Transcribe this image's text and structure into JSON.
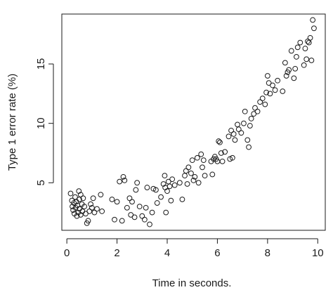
{
  "chart_data": {
    "type": "scatter",
    "title": "",
    "xlabel": "Time in seconds.",
    "ylabel": "Type 1 error rate (%)",
    "xlim": [
      -0.2,
      10.3
    ],
    "ylim": [
      1.0,
      19.2
    ],
    "xticks": [
      0,
      2,
      4,
      6,
      8,
      10
    ],
    "yticks": [
      5,
      10,
      15
    ],
    "grid": false,
    "legend": "none",
    "marker": "open-circle",
    "color": "#1a1a1a",
    "points": [
      [
        0.15,
        4.1
      ],
      [
        0.2,
        3.5
      ],
      [
        0.22,
        3.0
      ],
      [
        0.25,
        2.7
      ],
      [
        0.28,
        3.3
      ],
      [
        0.3,
        2.4
      ],
      [
        0.33,
        3.8
      ],
      [
        0.35,
        2.9
      ],
      [
        0.38,
        3.4
      ],
      [
        0.4,
        2.2
      ],
      [
        0.42,
        3.1
      ],
      [
        0.45,
        2.5
      ],
      [
        0.48,
        4.3
      ],
      [
        0.5,
        2.8
      ],
      [
        0.5,
        3.6
      ],
      [
        0.55,
        2.3
      ],
      [
        0.55,
        4.0
      ],
      [
        0.6,
        3.2
      ],
      [
        0.62,
        2.6
      ],
      [
        0.65,
        3.7
      ],
      [
        0.7,
        3.0
      ],
      [
        0.75,
        2.4
      ],
      [
        0.8,
        1.6
      ],
      [
        0.85,
        1.8
      ],
      [
        0.9,
        2.6
      ],
      [
        0.95,
        3.2
      ],
      [
        1.0,
        2.9
      ],
      [
        1.05,
        3.7
      ],
      [
        1.1,
        2.5
      ],
      [
        1.2,
        2.8
      ],
      [
        1.35,
        4.0
      ],
      [
        1.4,
        2.6
      ],
      [
        1.8,
        3.6
      ],
      [
        1.9,
        1.9
      ],
      [
        2.0,
        3.4
      ],
      [
        2.1,
        5.1
      ],
      [
        2.2,
        1.8
      ],
      [
        2.25,
        5.5
      ],
      [
        2.3,
        5.2
      ],
      [
        2.4,
        2.9
      ],
      [
        2.5,
        3.7
      ],
      [
        2.55,
        2.3
      ],
      [
        2.6,
        3.4
      ],
      [
        2.7,
        2.1
      ],
      [
        2.75,
        4.4
      ],
      [
        2.8,
        5.0
      ],
      [
        2.9,
        3.0
      ],
      [
        3.0,
        2.2
      ],
      [
        3.1,
        1.9
      ],
      [
        3.15,
        2.9
      ],
      [
        3.2,
        4.6
      ],
      [
        3.3,
        1.5
      ],
      [
        3.4,
        2.5
      ],
      [
        3.45,
        4.5
      ],
      [
        3.55,
        4.4
      ],
      [
        3.6,
        3.3
      ],
      [
        3.75,
        3.8
      ],
      [
        3.85,
        4.9
      ],
      [
        3.9,
        5.6
      ],
      [
        3.92,
        4.6
      ],
      [
        3.95,
        2.5
      ],
      [
        4.0,
        4.3
      ],
      [
        4.05,
        5.1
      ],
      [
        4.1,
        4.7
      ],
      [
        4.15,
        3.5
      ],
      [
        4.2,
        5.3
      ],
      [
        4.3,
        4.8
      ],
      [
        4.5,
        5.0
      ],
      [
        4.6,
        3.6
      ],
      [
        4.7,
        5.6
      ],
      [
        4.75,
        6.0
      ],
      [
        4.8,
        4.9
      ],
      [
        4.85,
        6.3
      ],
      [
        4.95,
        5.8
      ],
      [
        5.0,
        6.9
      ],
      [
        5.05,
        5.2
      ],
      [
        5.1,
        5.5
      ],
      [
        5.2,
        7.1
      ],
      [
        5.25,
        5.0
      ],
      [
        5.35,
        7.4
      ],
      [
        5.4,
        6.3
      ],
      [
        5.45,
        6.9
      ],
      [
        5.5,
        5.6
      ],
      [
        5.75,
        6.8
      ],
      [
        5.8,
        5.7
      ],
      [
        5.85,
        7.0
      ],
      [
        5.9,
        7.2
      ],
      [
        5.95,
        7.0
      ],
      [
        6.0,
        6.8
      ],
      [
        6.05,
        8.5
      ],
      [
        6.1,
        8.4
      ],
      [
        6.15,
        7.5
      ],
      [
        6.2,
        6.8
      ],
      [
        6.3,
        7.6
      ],
      [
        6.45,
        8.9
      ],
      [
        6.5,
        7.0
      ],
      [
        6.55,
        9.4
      ],
      [
        6.6,
        7.1
      ],
      [
        6.65,
        9.1
      ],
      [
        6.7,
        8.6
      ],
      [
        6.8,
        9.9
      ],
      [
        6.85,
        9.5
      ],
      [
        6.95,
        9.2
      ],
      [
        7.05,
        10.0
      ],
      [
        7.1,
        11.0
      ],
      [
        7.2,
        8.6
      ],
      [
        7.25,
        8.0
      ],
      [
        7.3,
        9.8
      ],
      [
        7.35,
        10.4
      ],
      [
        7.45,
        10.8
      ],
      [
        7.5,
        11.3
      ],
      [
        7.6,
        11.0
      ],
      [
        7.7,
        11.8
      ],
      [
        7.8,
        12.1
      ],
      [
        7.9,
        11.6
      ],
      [
        7.95,
        12.6
      ],
      [
        8.0,
        14.0
      ],
      [
        8.05,
        13.4
      ],
      [
        8.1,
        12.5
      ],
      [
        8.2,
        13.2
      ],
      [
        8.3,
        12.8
      ],
      [
        8.4,
        13.6
      ],
      [
        8.6,
        12.7
      ],
      [
        8.7,
        15.1
      ],
      [
        8.75,
        14.0
      ],
      [
        8.8,
        14.3
      ],
      [
        8.85,
        14.5
      ],
      [
        8.95,
        16.1
      ],
      [
        9.05,
        13.8
      ],
      [
        9.1,
        14.6
      ],
      [
        9.15,
        15.6
      ],
      [
        9.2,
        16.4
      ],
      [
        9.3,
        16.8
      ],
      [
        9.45,
        14.9
      ],
      [
        9.5,
        16.3
      ],
      [
        9.55,
        15.4
      ],
      [
        9.65,
        16.8
      ],
      [
        9.7,
        17.2
      ],
      [
        9.75,
        15.3
      ],
      [
        9.8,
        18.7
      ],
      [
        9.85,
        18.0
      ],
      [
        9.6,
        16.9
      ]
    ]
  }
}
